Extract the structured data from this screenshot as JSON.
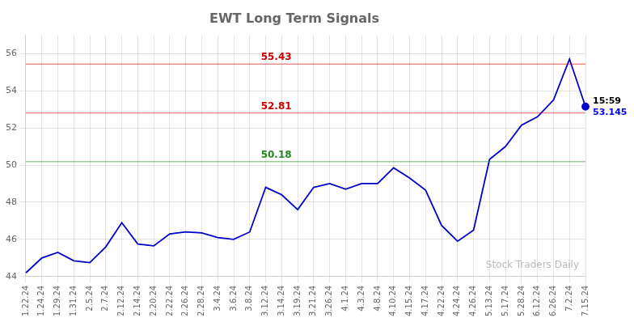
{
  "chart_data": {
    "type": "line",
    "title": "EWT Long Term Signals",
    "categories": [
      "1.22.24",
      "1.24.24",
      "1.29.24",
      "1.31.24",
      "2.5.24",
      "2.7.24",
      "2.12.24",
      "2.14.24",
      "2.20.24",
      "2.22.24",
      "2.26.24",
      "2.28.24",
      "3.4.24",
      "3.6.24",
      "3.8.24",
      "3.12.24",
      "3.14.24",
      "3.19.24",
      "3.21.24",
      "3.26.24",
      "4.1.24",
      "4.3.24",
      "4.8.24",
      "4.10.24",
      "4.15.24",
      "4.17.24",
      "4.22.24",
      "4.24.24",
      "4.26.24",
      "5.13.24",
      "5.17.24",
      "5.28.24",
      "6.12.24",
      "6.26.24",
      "7.2.24",
      "7.15.24"
    ],
    "values": [
      44.2,
      45.0,
      45.3,
      44.85,
      44.75,
      45.6,
      46.9,
      45.75,
      45.65,
      46.3,
      46.4,
      46.35,
      46.1,
      46.0,
      46.4,
      48.8,
      48.4,
      47.6,
      48.8,
      49.0,
      48.7,
      49.0,
      49.0,
      49.85,
      49.3,
      48.65,
      46.75,
      45.9,
      46.5,
      50.3,
      51.0,
      52.15,
      52.6,
      53.5,
      55.7,
      53.145
    ],
    "color": "#0000cc",
    "ylim": [
      44,
      57
    ],
    "yticks": [
      44,
      46,
      48,
      50,
      52,
      54,
      56
    ],
    "grid": true,
    "reference_lines": [
      {
        "y": 55.43,
        "label": "55.43",
        "color": "#cc0000"
      },
      {
        "y": 52.81,
        "label": "52.81",
        "color": "#cc0000"
      },
      {
        "y": 50.18,
        "label": "50.18",
        "color": "#228822"
      }
    ],
    "annotations": [
      {
        "text": "15:59"
      },
      {
        "text": "53.145",
        "color": "#0000ff"
      }
    ],
    "watermark": "Stock Traders Daily"
  }
}
